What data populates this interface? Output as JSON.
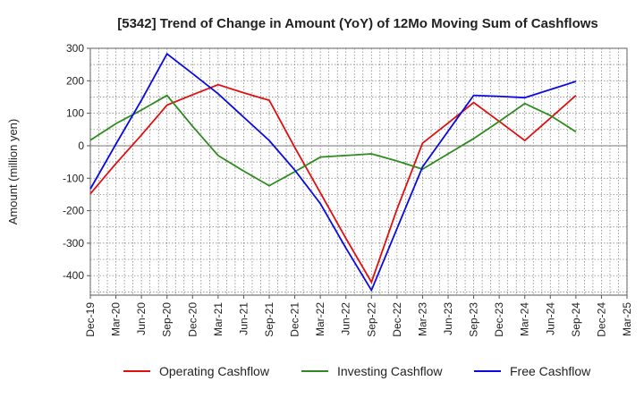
{
  "chart_data": {
    "type": "line",
    "title": "[5342]  Trend of Change in Amount (YoY) of 12Mo Moving Sum of Cashflows",
    "xlabel": "",
    "ylabel": "Amount (million yen)",
    "ylim": [
      -460,
      300
    ],
    "yticks": [
      300,
      200,
      100,
      0,
      -100,
      -200,
      -300,
      -400
    ],
    "categories": [
      "Dec-19",
      "Mar-20",
      "Jun-20",
      "Sep-20",
      "Dec-20",
      "Mar-21",
      "Jun-21",
      "Sep-21",
      "Dec-21",
      "Mar-22",
      "Jun-22",
      "Sep-22",
      "Dec-22",
      "Mar-23",
      "Jun-23",
      "Sep-23",
      "Dec-23",
      "Mar-24",
      "Jun-24",
      "Sep-24",
      "Dec-24",
      "Mar-25"
    ],
    "grid": true,
    "legend_position": "bottom",
    "series": [
      {
        "name": "Operating Cashflow",
        "color": "#e01010",
        "values": [
          -148,
          -55,
          33,
          125,
          157,
          188,
          163,
          140,
          -5,
          -145,
          -285,
          -420,
          -195,
          8,
          70,
          133,
          75,
          16,
          85,
          155,
          null,
          null
        ]
      },
      {
        "name": "Investing Cashflow",
        "color": "#2e8b1e",
        "values": [
          17,
          68,
          110,
          155,
          60,
          -30,
          -78,
          -123,
          -80,
          -35,
          -30,
          -25,
          -47,
          -72,
          -25,
          22,
          75,
          130,
          93,
          43,
          null,
          null
        ]
      },
      {
        "name": "Free Cashflow",
        "color": "#0a0ae0",
        "values": [
          -133,
          5,
          140,
          283,
          222,
          160,
          88,
          16,
          -75,
          -178,
          -315,
          -445,
          -255,
          -65,
          45,
          155,
          152,
          148,
          173,
          198,
          null,
          null
        ]
      }
    ]
  }
}
